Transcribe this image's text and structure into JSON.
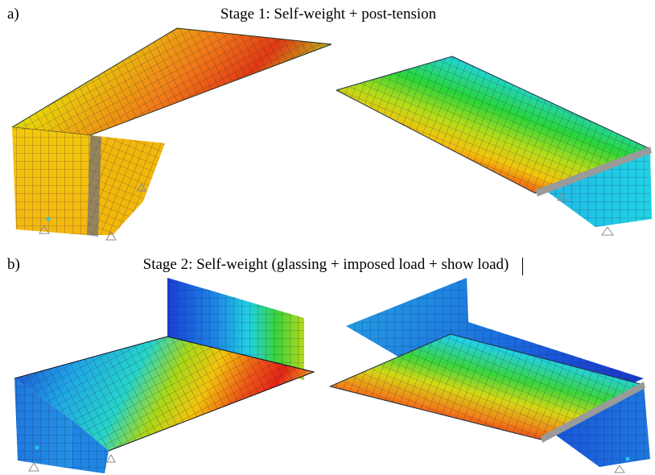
{
  "stages": [
    {
      "label": "a)",
      "title": "Stage 1: Self-weight + post-tension"
    },
    {
      "label": "b)",
      "title": "Stage 2: Self-weight (glassing + imposed load + show load)"
    }
  ],
  "colors": {
    "low": "#1a3ccf",
    "cyan": "#22c8e6",
    "green": "#2bd23a",
    "yellow": "#f2d20a",
    "orange": "#f0901a",
    "red": "#e42418",
    "magenta": "#c8208c",
    "mesh": "#1c1c3a",
    "support": "#8c8c8c"
  }
}
